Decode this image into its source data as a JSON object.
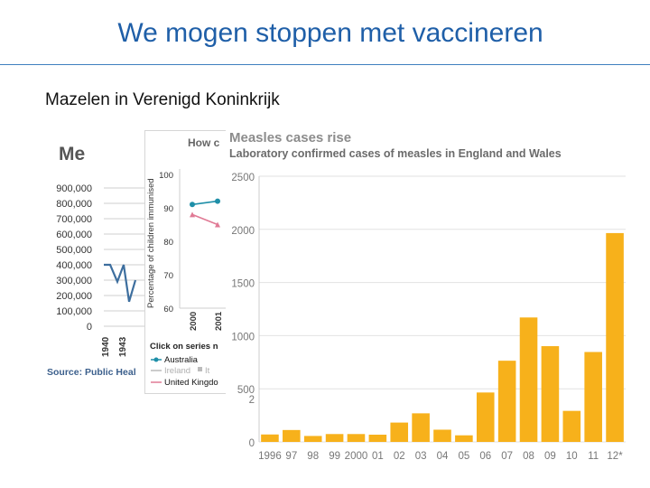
{
  "slide": {
    "title": "We mogen stoppen met vaccineren",
    "subtitle": "Mazelen in Verenigd Koninkrijk"
  },
  "chart_data": [
    {
      "type": "line",
      "title": "Me",
      "yticks": [
        "900,000",
        "800,000",
        "700,000",
        "600,000",
        "500,000",
        "400,000",
        "300,000",
        "200,000",
        "100,000",
        "0"
      ],
      "xticks": [
        "1940",
        "1943"
      ],
      "ylim": [
        0,
        900000
      ],
      "series": [
        {
          "values": [
            400000,
            400000,
            290000,
            400000,
            160000,
            300000
          ]
        }
      ],
      "source": "Source: Public Heal",
      "colors": {
        "line": "#3d6e9e"
      }
    },
    {
      "type": "line",
      "title": "How c",
      "ylabel": "Percentage of children immunised",
      "yticks": [
        "100",
        "90",
        "80",
        "70",
        "60"
      ],
      "ylim": [
        60,
        100
      ],
      "x": [
        "2000",
        "2001"
      ],
      "series": [
        {
          "name": "Australia",
          "values": [
            91,
            92
          ],
          "color": "#1f8fa8"
        },
        {
          "name": "United Kingdo",
          "values": [
            88,
            85
          ],
          "color": "#e07a95"
        }
      ],
      "legend_heading": "Click on series n",
      "legend_extra": [
        "Ireland",
        "It"
      ]
    },
    {
      "type": "bar",
      "title": "Measles cases rise",
      "subtitle": "Laboratory confirmed cases of measles in England and Wales",
      "categories": [
        "1996",
        "97",
        "98",
        "99",
        "2000",
        "01",
        "02",
        "03",
        "04",
        "05",
        "06",
        "07",
        "08",
        "09",
        "10",
        "11",
        "12*"
      ],
      "values": [
        70,
        112,
        56,
        74,
        74,
        68,
        182,
        269,
        115,
        62,
        465,
        764,
        1171,
        901,
        292,
        846,
        1965
      ],
      "yticks": [
        "2500",
        "2000",
        "1500",
        "1000",
        "500",
        "2",
        "0"
      ],
      "ylim": [
        0,
        2500
      ],
      "colors": {
        "bar": "#f7b11b",
        "grid": "#e2e2e2",
        "title": "#8c8c8c",
        "subtitle": "#6b6b6b"
      }
    }
  ]
}
